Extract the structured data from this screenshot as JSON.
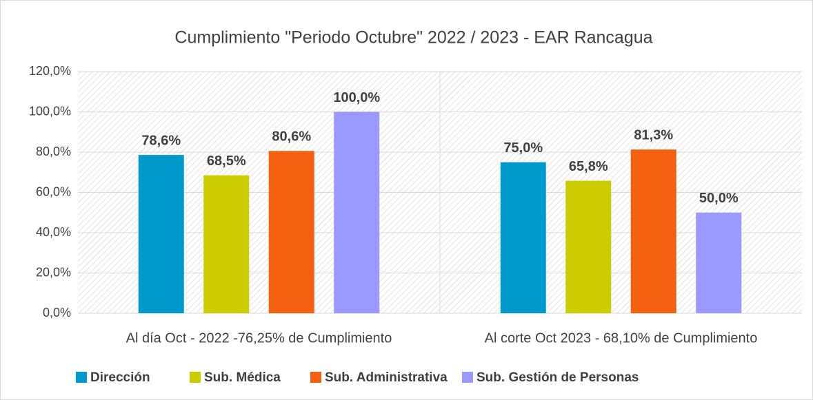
{
  "chart_data": {
    "type": "bar",
    "title": "Cumplimiento  \"Periodo Octubre\" 2022 / 2023 - EAR Rancagua",
    "categories": [
      "Al día Oct - 2022 -76,25% de Cumplimiento",
      "Al corte Oct 2023 -  68,10% de Cumplimiento"
    ],
    "series": [
      {
        "name": "Dirección",
        "color": "#0099cc",
        "values": [
          78.6,
          75.0
        ],
        "value_labels": [
          "78,6%",
          "75,0%"
        ]
      },
      {
        "name": "Sub. Médica",
        "color": "#cccc00",
        "values": [
          68.5,
          65.8
        ],
        "value_labels": [
          "68,5%",
          "65,8%"
        ]
      },
      {
        "name": "Sub. Administrativa",
        "color": "#f26010",
        "values": [
          80.6,
          81.3
        ],
        "value_labels": [
          "80,6%",
          "81,3%"
        ]
      },
      {
        "name": "Sub. Gestión de Personas",
        "color": "#9999ff",
        "values": [
          100.0,
          50.0
        ],
        "value_labels": [
          "100,0%",
          "50,0%"
        ]
      }
    ],
    "ylim": [
      0,
      120
    ],
    "yticks": [
      {
        "value": 0,
        "label": "0,0%"
      },
      {
        "value": 20,
        "label": "20,0%"
      },
      {
        "value": 40,
        "label": "40,0%"
      },
      {
        "value": 60,
        "label": "60,0%"
      },
      {
        "value": 80,
        "label": "80,0%"
      },
      {
        "value": 100,
        "label": "100,0%"
      },
      {
        "value": 120,
        "label": "120,0%"
      }
    ],
    "grid": true,
    "legend": "bottom"
  }
}
